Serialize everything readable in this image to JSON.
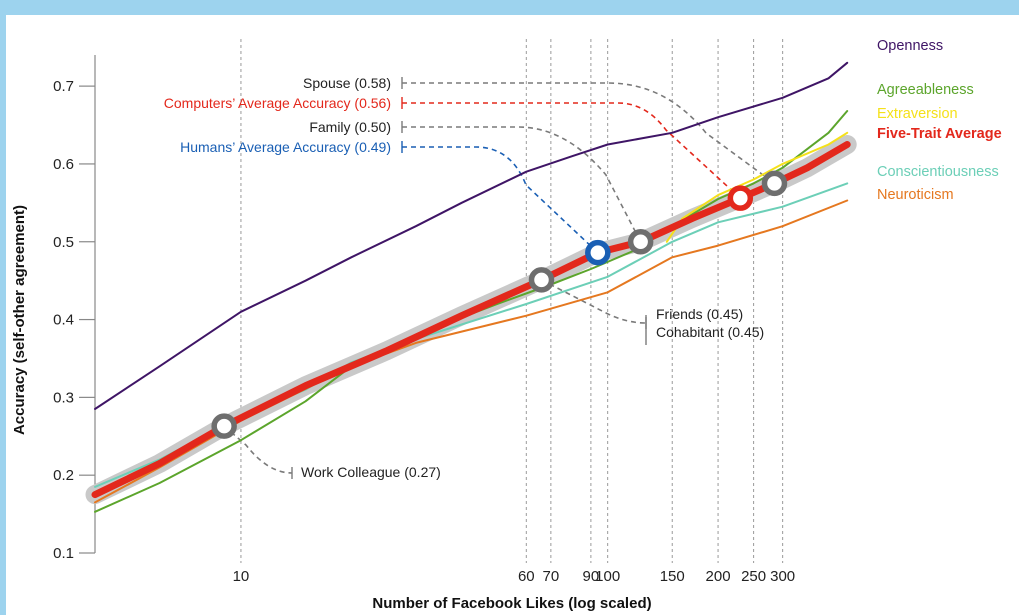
{
  "chart_data": {
    "type": "line",
    "xscale": "log",
    "xlabel": "Number of Facebook Likes (log scaled)",
    "ylabel": "Accuracy (self-other agreement)",
    "xlim": [
      4,
      500
    ],
    "ylim": [
      0.1,
      0.74
    ],
    "x_ticks": [
      10,
      60,
      70,
      90,
      100,
      150,
      200,
      250,
      300
    ],
    "y_ticks": [
      0.1,
      0.2,
      0.3,
      0.4,
      0.5,
      0.6,
      0.7
    ],
    "y_tick_labels": [
      "0.1",
      "0.2",
      "0.3",
      "0.4",
      "0.5",
      "0.6",
      "0.7"
    ],
    "grid": "vertical dashed lines at x ticks",
    "series": [
      {
        "name": "Openness",
        "color": "#3f1566",
        "width": 2,
        "points": [
          [
            4,
            0.285
          ],
          [
            6,
            0.34
          ],
          [
            10,
            0.41
          ],
          [
            15,
            0.45
          ],
          [
            20,
            0.48
          ],
          [
            30,
            0.52
          ],
          [
            40,
            0.55
          ],
          [
            60,
            0.59
          ],
          [
            80,
            0.61
          ],
          [
            100,
            0.625
          ],
          [
            150,
            0.64
          ],
          [
            200,
            0.66
          ],
          [
            300,
            0.685
          ],
          [
            400,
            0.71
          ],
          [
            450,
            0.73
          ]
        ]
      },
      {
        "name": "Agreeableness",
        "color": "#5ca52c",
        "width": 2,
        "points": [
          [
            4,
            0.153
          ],
          [
            6,
            0.19
          ],
          [
            10,
            0.245
          ],
          [
            15,
            0.295
          ],
          [
            20,
            0.34
          ],
          [
            30,
            0.38
          ],
          [
            50,
            0.42
          ],
          [
            70,
            0.445
          ],
          [
            90,
            0.465
          ],
          [
            120,
            0.49
          ],
          [
            150,
            0.52
          ],
          [
            200,
            0.555
          ],
          [
            250,
            0.575
          ],
          [
            300,
            0.595
          ],
          [
            400,
            0.64
          ],
          [
            450,
            0.668
          ]
        ]
      },
      {
        "name": "Extraversion",
        "color": "#f5e11a",
        "width": 2,
        "points": [
          [
            145,
            0.5
          ],
          [
            160,
            0.53
          ],
          [
            200,
            0.56
          ],
          [
            250,
            0.58
          ],
          [
            300,
            0.6
          ],
          [
            400,
            0.625
          ],
          [
            450,
            0.64
          ]
        ]
      },
      {
        "name": "Conscientiousness",
        "color": "#6ccfb7",
        "width": 2,
        "points": [
          [
            4,
            0.185
          ],
          [
            6,
            0.22
          ],
          [
            10,
            0.275
          ],
          [
            15,
            0.31
          ],
          [
            20,
            0.345
          ],
          [
            30,
            0.375
          ],
          [
            60,
            0.42
          ],
          [
            100,
            0.455
          ],
          [
            150,
            0.5
          ],
          [
            200,
            0.525
          ],
          [
            300,
            0.545
          ],
          [
            450,
            0.575
          ]
        ]
      },
      {
        "name": "Neuroticism",
        "color": "#e57820",
        "width": 2,
        "points": [
          [
            4,
            0.165
          ],
          [
            6,
            0.21
          ],
          [
            10,
            0.27
          ],
          [
            20,
            0.34
          ],
          [
            30,
            0.37
          ],
          [
            60,
            0.405
          ],
          [
            100,
            0.435
          ],
          [
            150,
            0.48
          ],
          [
            200,
            0.495
          ],
          [
            300,
            0.52
          ],
          [
            450,
            0.553
          ]
        ]
      },
      {
        "name": "Five-Trait Average",
        "color": "#e3281c",
        "width": 7,
        "halo": "#c9c9c9",
        "points": [
          [
            4,
            0.175
          ],
          [
            6,
            0.215
          ],
          [
            9,
            0.263
          ],
          [
            15,
            0.315
          ],
          [
            25,
            0.36
          ],
          [
            40,
            0.405
          ],
          [
            66,
            0.451
          ],
          [
            94,
            0.486
          ],
          [
            123,
            0.5
          ],
          [
            170,
            0.53
          ],
          [
            230,
            0.556
          ],
          [
            285,
            0.575
          ],
          [
            350,
            0.595
          ],
          [
            450,
            0.625
          ]
        ]
      }
    ],
    "label_series": [
      "Openness",
      "Agreeableness",
      "Extraversion",
      "Five-Trait Average",
      "Conscientiousness",
      "Neuroticism"
    ],
    "markers": [
      {
        "x": 9,
        "y": 0.263,
        "color": "#6e6e6e"
      },
      {
        "x": 66,
        "y": 0.451,
        "color": "#6e6e6e"
      },
      {
        "x": 94,
        "y": 0.486,
        "color": "#1a5fb4"
      },
      {
        "x": 123,
        "y": 0.5,
        "color": "#6e6e6e"
      },
      {
        "x": 230,
        "y": 0.556,
        "color": "#e3281c"
      },
      {
        "x": 285,
        "y": 0.575,
        "color": "#6e6e6e"
      }
    ],
    "annotations": [
      {
        "text": "Spouse (0.58)",
        "color": "#222222",
        "line": "#7a7a7a"
      },
      {
        "text": "Computers’ Average Accuracy (0.56)",
        "color": "#e3281c",
        "line": "#e3281c"
      },
      {
        "text": "Family (0.50)",
        "color": "#222222",
        "line": "#7a7a7a"
      },
      {
        "text": "Humans’ Average Accuracy (0.49)",
        "color": "#1a5fb4",
        "line": "#1a5fb4"
      },
      {
        "text": "Friends (0.45)",
        "color": "#222222",
        "line": "#7a7a7a"
      },
      {
        "text": "Cohabitant (0.45)",
        "color": "#222222",
        "line": "#7a7a7a"
      },
      {
        "text": "Work Colleague (0.27)",
        "color": "#222222",
        "line": "#7a7a7a"
      }
    ]
  }
}
